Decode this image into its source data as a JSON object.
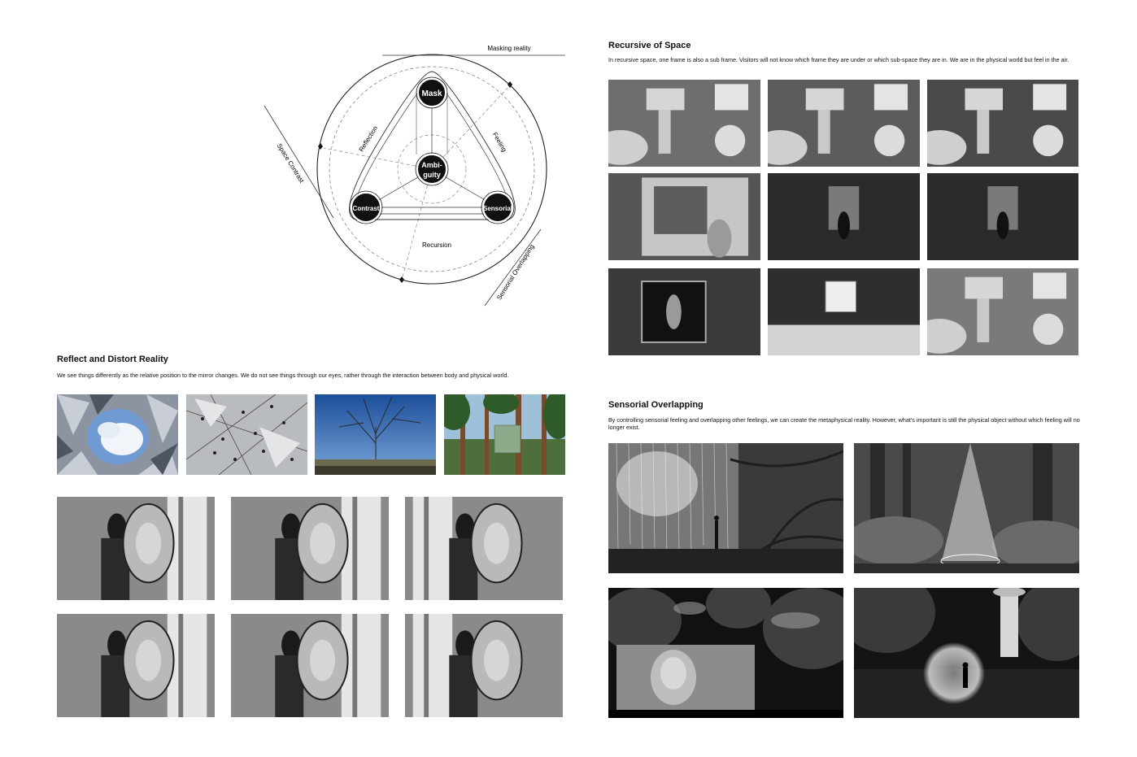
{
  "diagram": {
    "nodes": {
      "mask": "Mask",
      "ambiguity_line1": "Ambi-",
      "ambiguity_line2": "guity",
      "contrast": "Contrast",
      "sensorial": "Sensorial"
    },
    "edge_labels": {
      "reflection": "Reflection",
      "feeling": "Feeling",
      "recursion": "Recursion"
    },
    "outer_labels": {
      "masking_reality": "Masking reality",
      "space_contrast": "Space Contrast",
      "sensorial_overlapping": "Sensorial Overlapping"
    }
  },
  "sections": {
    "recursive": {
      "title": "Recursive of Space",
      "description": "In recursive space, one frame is also a sub frame. Visitors will not know which frame they are under or which sub-space they are in. We are in the physical world but feel in the air."
    },
    "reflect": {
      "title": "Reflect and Distort Reality",
      "description": "We see things differently as the relative position to the mirror changes. We do not see things through our eyes, rather through the interaction between body and physical world."
    },
    "sensorial": {
      "title": "Sensorial Overlapping",
      "description": "By controlling sensorial feeling and overlapping other feelings, we can create the metaphysical reality. However, what's important is still the physical object without which feeling will no longer exist."
    }
  }
}
